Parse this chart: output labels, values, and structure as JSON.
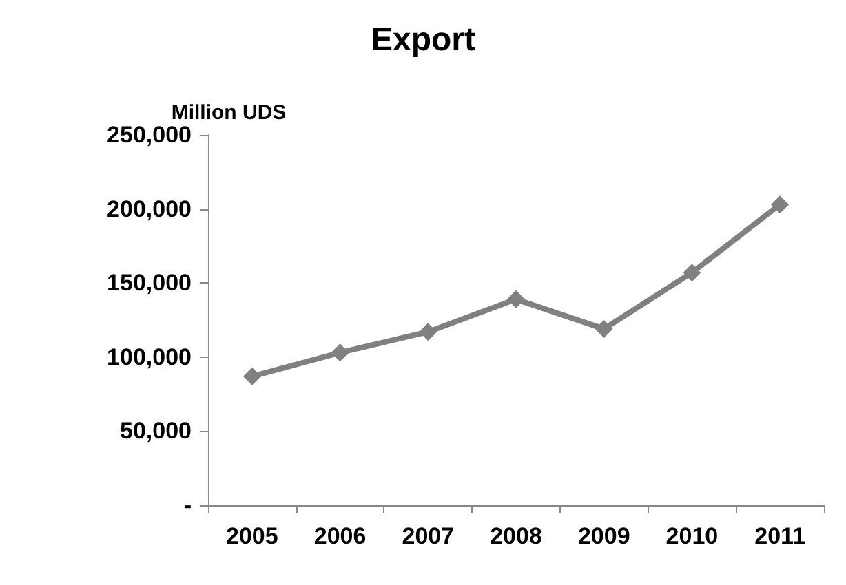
{
  "chart_data": {
    "type": "line",
    "title": "Export",
    "ylabel": "Million UDS",
    "categories": [
      "2005",
      "2006",
      "2007",
      "2008",
      "2009",
      "2010",
      "2011"
    ],
    "series": [
      {
        "color": "#808080",
        "values": [
          87000,
          103000,
          117000,
          139000,
          119000,
          157000,
          203000
        ]
      }
    ],
    "ylim": [
      0,
      250000
    ],
    "yticks": [
      {
        "value": 0,
        "label": "-"
      },
      {
        "value": 50000,
        "label": "50,000"
      },
      {
        "value": 100000,
        "label": "100,000"
      },
      {
        "value": 150000,
        "label": "150,000"
      },
      {
        "value": 200000,
        "label": "200,000"
      },
      {
        "value": 250000,
        "label": "250,000"
      }
    ],
    "grid": false,
    "marker": "diamond",
    "line_style": "solid"
  }
}
